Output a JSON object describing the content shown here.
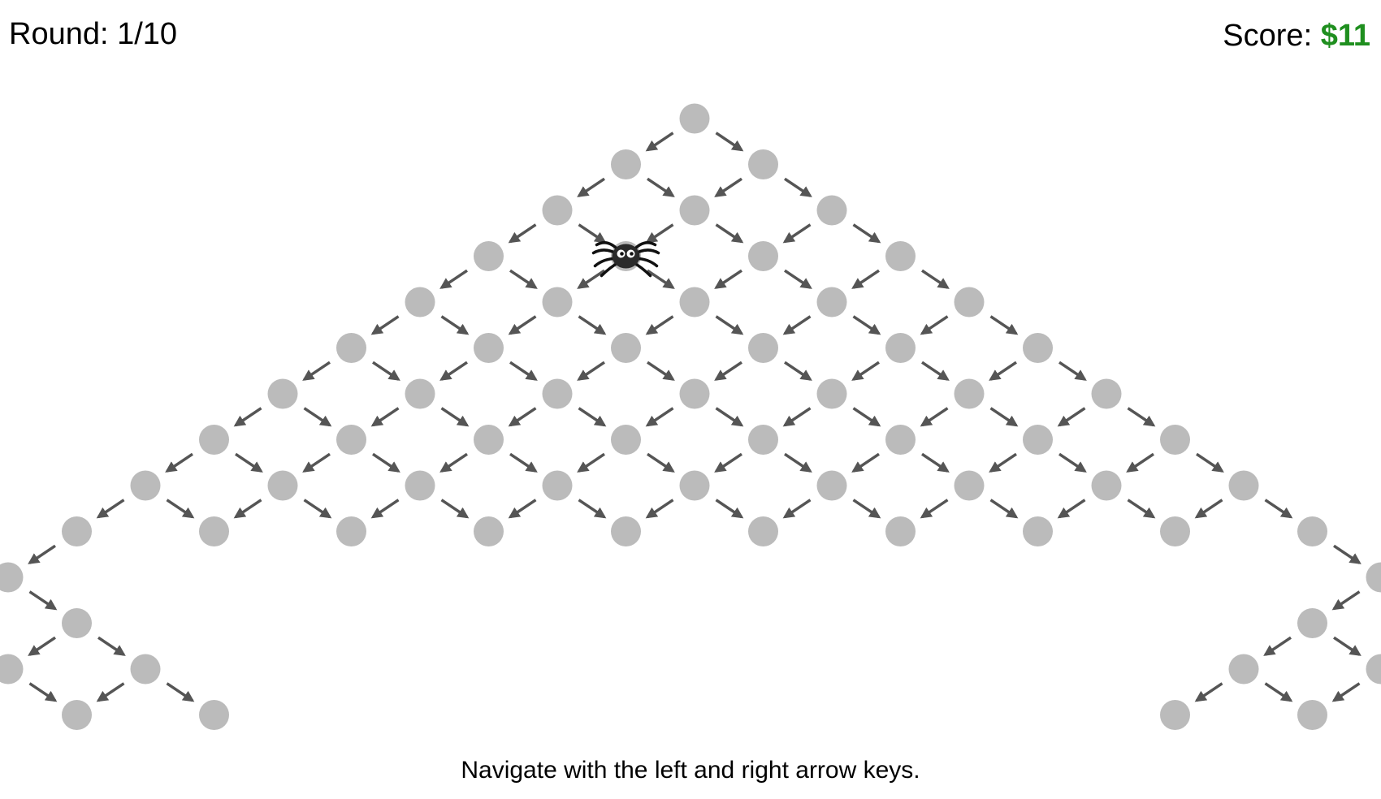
{
  "hud": {
    "round_label": "Round: 1/10",
    "score_label": "Score: ",
    "score_value": "$11"
  },
  "instructions": "Navigate with the left and right arrow keys.",
  "board": {
    "node_color": "#bbbbbb",
    "arrow_color": "#555555",
    "player_row": 3,
    "player_col": 1,
    "player_icon": "spider-icon"
  },
  "colors": {
    "score_accent": "#1f8f1f"
  }
}
